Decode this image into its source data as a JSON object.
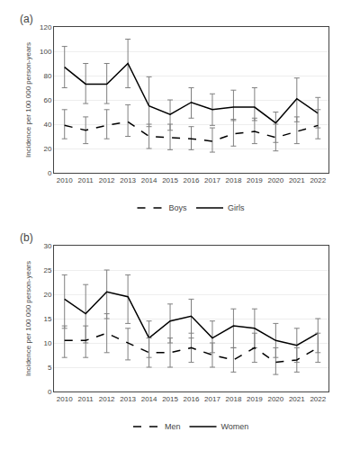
{
  "chart_data": [
    {
      "type": "line",
      "title": "(a)",
      "x": [
        2010,
        2011,
        2012,
        2013,
        2014,
        2015,
        2016,
        2017,
        2018,
        2019,
        2020,
        2021,
        2022
      ],
      "xlim": [
        2009.5,
        2022.5
      ],
      "xticks": [
        2010,
        2011,
        2012,
        2013,
        2014,
        2015,
        2016,
        2017,
        2018,
        2019,
        2020,
        2021,
        2022
      ],
      "ylabel": "Incidence per 100 000 person-years",
      "ylim": [
        0,
        120
      ],
      "yticks": [
        0,
        20,
        40,
        60,
        80,
        100,
        120
      ],
      "grid": true,
      "legend": "bottom",
      "series": [
        {
          "name": "Girls",
          "color": "#000000",
          "line_style": "solid",
          "values": [
            87,
            73,
            73,
            90,
            55,
            48,
            58,
            52,
            54,
            54,
            41,
            61,
            49
          ],
          "lower": [
            70,
            57,
            57,
            70,
            38,
            35,
            45,
            39,
            43,
            43,
            25,
            42,
            37
          ],
          "upper": [
            104,
            90,
            90,
            110,
            79,
            60,
            70,
            65,
            68,
            70,
            50,
            78,
            62
          ]
        },
        {
          "name": "Boys",
          "color": "#000000",
          "line_style": "dashed",
          "values": [
            39,
            35,
            39,
            42,
            30,
            29,
            28,
            26,
            32,
            34,
            29,
            34,
            39
          ],
          "lower": [
            28,
            24,
            28,
            30,
            20,
            19,
            19,
            17,
            22,
            24,
            18,
            24,
            28
          ],
          "upper": [
            52,
            46,
            52,
            56,
            40,
            40,
            38,
            37,
            44,
            45,
            40,
            46,
            52
          ]
        }
      ]
    },
    {
      "type": "line",
      "title": "(b)",
      "x": [
        2010,
        2011,
        2012,
        2013,
        2014,
        2015,
        2016,
        2017,
        2018,
        2019,
        2020,
        2021,
        2022
      ],
      "xlim": [
        2009.5,
        2022.5
      ],
      "xticks": [
        2010,
        2011,
        2012,
        2013,
        2014,
        2015,
        2016,
        2017,
        2018,
        2019,
        2020,
        2021,
        2022
      ],
      "ylabel": "Incidence per 100 000 person-years",
      "ylim": [
        0,
        30
      ],
      "yticks": [
        0,
        5,
        10,
        15,
        20,
        25,
        30
      ],
      "grid": true,
      "legend": "bottom",
      "series": [
        {
          "name": "Women",
          "color": "#000000",
          "line_style": "solid",
          "values": [
            19,
            16,
            20.5,
            19.5,
            11,
            14.5,
            15.5,
            11,
            13.5,
            13,
            10.5,
            9.5,
            12
          ],
          "lower": [
            13,
            10,
            15,
            14,
            7,
            10,
            11,
            8,
            9,
            9,
            7,
            6,
            8
          ],
          "upper": [
            24,
            22,
            25,
            24,
            14.5,
            18,
            19,
            14.5,
            17,
            17,
            14,
            13,
            15
          ]
        },
        {
          "name": "Men",
          "color": "#000000",
          "line_style": "dashed",
          "values": [
            10.5,
            10.5,
            12,
            10,
            8,
            8,
            9,
            7.5,
            6.5,
            9,
            6,
            6.5,
            9
          ],
          "lower": [
            7,
            7,
            8,
            6.5,
            5,
            5,
            6,
            5,
            4,
            6,
            3.5,
            4,
            6
          ],
          "upper": [
            13.5,
            13.5,
            16,
            13,
            11,
            11,
            12,
            10,
            9,
            12,
            9,
            9,
            12
          ]
        }
      ]
    }
  ]
}
